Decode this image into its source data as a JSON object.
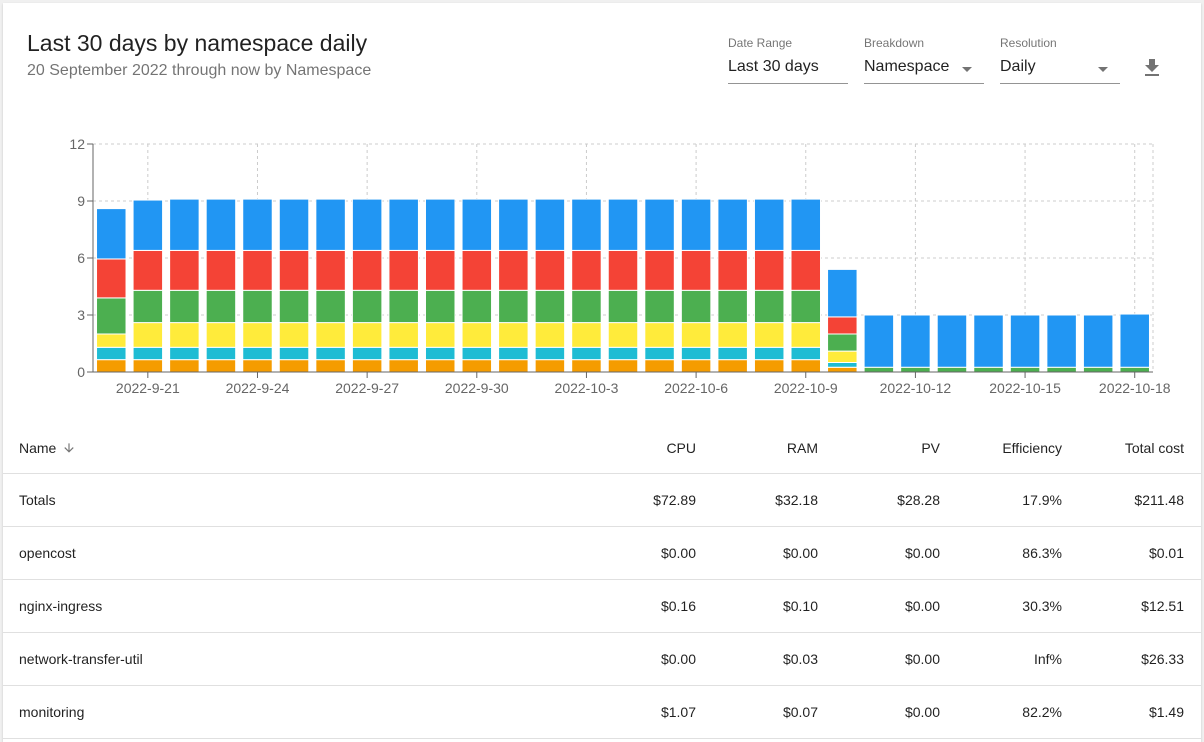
{
  "header": {
    "title": "Last 30 days by namespace daily",
    "subtitle": "20 September 2022 through now by Namespace"
  },
  "controls": {
    "date_range": {
      "label": "Date Range",
      "value": "Last 30 days"
    },
    "breakdown": {
      "label": "Breakdown",
      "value": "Namespace"
    },
    "resolution": {
      "label": "Resolution",
      "value": "Daily"
    },
    "download_icon": "download-icon"
  },
  "colors": {
    "series": [
      "#f59c00",
      "#1ebcd4",
      "#ffeb3b",
      "#4caf50",
      "#f44336",
      "#2196f3"
    ],
    "grid": "#cccccc",
    "axis": "#666666"
  },
  "chart_data": {
    "type": "bar",
    "stacked": true,
    "ylim": [
      0,
      12
    ],
    "yticks": [
      0,
      3,
      6,
      9,
      12
    ],
    "grid": true,
    "categories": [
      "2022-9-20",
      "2022-9-21",
      "2022-9-22",
      "2022-9-23",
      "2022-9-24",
      "2022-9-25",
      "2022-9-26",
      "2022-9-27",
      "2022-9-28",
      "2022-9-29",
      "2022-9-30",
      "2022-10-1",
      "2022-10-2",
      "2022-10-3",
      "2022-10-4",
      "2022-10-5",
      "2022-10-6",
      "2022-10-7",
      "2022-10-8",
      "2022-10-9",
      "2022-10-10",
      "2022-10-11",
      "2022-10-12",
      "2022-10-13",
      "2022-10-14",
      "2022-10-15",
      "2022-10-16",
      "2022-10-17",
      "2022-10-18"
    ],
    "xtick_labels": [
      "2022-9-21",
      "2022-9-24",
      "2022-9-27",
      "2022-9-30",
      "2022-10-3",
      "2022-10-6",
      "2022-10-9",
      "2022-10-12",
      "2022-10-15",
      "2022-10-18"
    ],
    "series": [
      {
        "values": [
          0.65,
          0.65,
          0.65,
          0.65,
          0.65,
          0.65,
          0.65,
          0.65,
          0.65,
          0.65,
          0.65,
          0.65,
          0.65,
          0.65,
          0.65,
          0.65,
          0.65,
          0.65,
          0.65,
          0.65,
          0.25,
          0,
          0,
          0,
          0,
          0,
          0,
          0,
          0
        ]
      },
      {
        "values": [
          0.65,
          0.65,
          0.65,
          0.65,
          0.65,
          0.65,
          0.65,
          0.65,
          0.65,
          0.65,
          0.65,
          0.65,
          0.65,
          0.65,
          0.65,
          0.65,
          0.65,
          0.65,
          0.65,
          0.65,
          0.25,
          0,
          0,
          0,
          0,
          0,
          0,
          0,
          0
        ]
      },
      {
        "values": [
          0.7,
          1.3,
          1.3,
          1.3,
          1.3,
          1.3,
          1.3,
          1.3,
          1.3,
          1.3,
          1.3,
          1.3,
          1.3,
          1.3,
          1.3,
          1.3,
          1.3,
          1.3,
          1.3,
          1.3,
          0.6,
          0,
          0,
          0,
          0,
          0,
          0,
          0,
          0
        ]
      },
      {
        "values": [
          1.9,
          1.7,
          1.7,
          1.7,
          1.7,
          1.7,
          1.7,
          1.7,
          1.7,
          1.7,
          1.7,
          1.7,
          1.7,
          1.7,
          1.7,
          1.7,
          1.7,
          1.7,
          1.7,
          1.7,
          0.9,
          0.25,
          0.25,
          0.25,
          0.25,
          0.25,
          0.25,
          0.25,
          0.25
        ]
      },
      {
        "values": [
          2.05,
          2.1,
          2.1,
          2.1,
          2.1,
          2.1,
          2.1,
          2.1,
          2.1,
          2.1,
          2.1,
          2.1,
          2.1,
          2.1,
          2.1,
          2.1,
          2.1,
          2.1,
          2.1,
          2.1,
          0.9,
          0,
          0,
          0,
          0,
          0,
          0,
          0,
          0
        ]
      },
      {
        "values": [
          2.65,
          2.65,
          2.7,
          2.7,
          2.7,
          2.7,
          2.7,
          2.7,
          2.7,
          2.7,
          2.7,
          2.7,
          2.7,
          2.7,
          2.7,
          2.7,
          2.7,
          2.7,
          2.7,
          2.7,
          2.5,
          2.75,
          2.75,
          2.75,
          2.75,
          2.75,
          2.75,
          2.75,
          2.8
        ]
      }
    ]
  },
  "table": {
    "columns": [
      "Name",
      "CPU",
      "RAM",
      "PV",
      "Efficiency",
      "Total cost"
    ],
    "sort_icon": "arrow-down-icon",
    "rows": [
      [
        "Totals",
        "$72.89",
        "$32.18",
        "$28.28",
        "17.9%",
        "$211.48"
      ],
      [
        "opencost",
        "$0.00",
        "$0.00",
        "$0.00",
        "86.3%",
        "$0.01"
      ],
      [
        "nginx-ingress",
        "$0.16",
        "$0.10",
        "$0.00",
        "30.3%",
        "$12.51"
      ],
      [
        "network-transfer-util",
        "$0.00",
        "$0.03",
        "$0.00",
        "Inf%",
        "$26.33"
      ],
      [
        "monitoring",
        "$1.07",
        "$0.07",
        "$0.00",
        "82.2%",
        "$1.49"
      ]
    ]
  }
}
